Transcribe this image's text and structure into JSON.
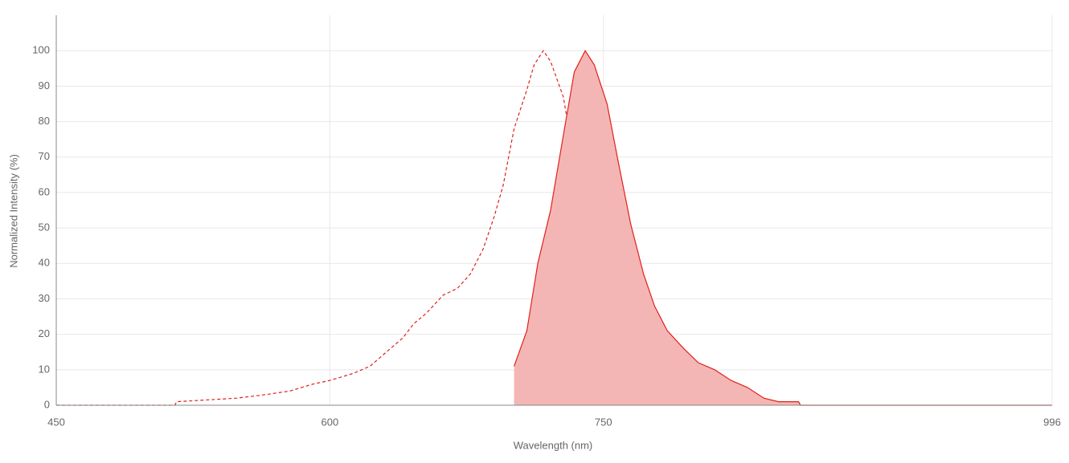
{
  "chart_data": {
    "type": "line",
    "x_label": "Wavelength (nm)",
    "y_label": "Normalized Intensity (%)",
    "xlim": [
      450,
      996
    ],
    "ylim": [
      0,
      110
    ],
    "xticks": [
      450,
      600,
      750,
      996
    ],
    "yticks": [
      0,
      10,
      20,
      30,
      40,
      50,
      60,
      70,
      80,
      90,
      100
    ],
    "grid": true,
    "series": [
      {
        "color": "#e0211d",
        "style": "dashed",
        "fill": false,
        "x": [
          450,
          515,
          516,
          549,
          565,
          578,
          591,
          600,
          613,
          622,
          631,
          640,
          646,
          653,
          662,
          670,
          677,
          684,
          690,
          695,
          701,
          708,
          712,
          717,
          721,
          728,
          734,
          741,
          747,
          752
        ],
        "values": [
          0,
          0,
          1,
          2,
          3,
          4,
          6,
          7,
          9,
          11,
          15,
          19,
          23,
          26,
          31,
          33,
          37,
          44,
          53,
          62,
          78,
          89,
          96,
          100,
          97,
          87,
          69,
          49,
          31,
          20
        ]
      },
      {
        "color": "#e0211d",
        "fill_color": "#f4b6b4",
        "style": "solid",
        "fill": true,
        "x": [
          701,
          708,
          714,
          721,
          728,
          734,
          740,
          745,
          752,
          758,
          765,
          772,
          778,
          785,
          794,
          802,
          811,
          820,
          829,
          838,
          846,
          857,
          858,
          996
        ],
        "values": [
          11,
          21,
          40,
          55,
          76,
          94,
          100,
          96,
          85,
          69,
          51,
          37,
          28,
          21,
          16,
          12,
          10,
          7,
          5,
          2,
          1,
          1,
          0,
          0
        ]
      }
    ]
  }
}
